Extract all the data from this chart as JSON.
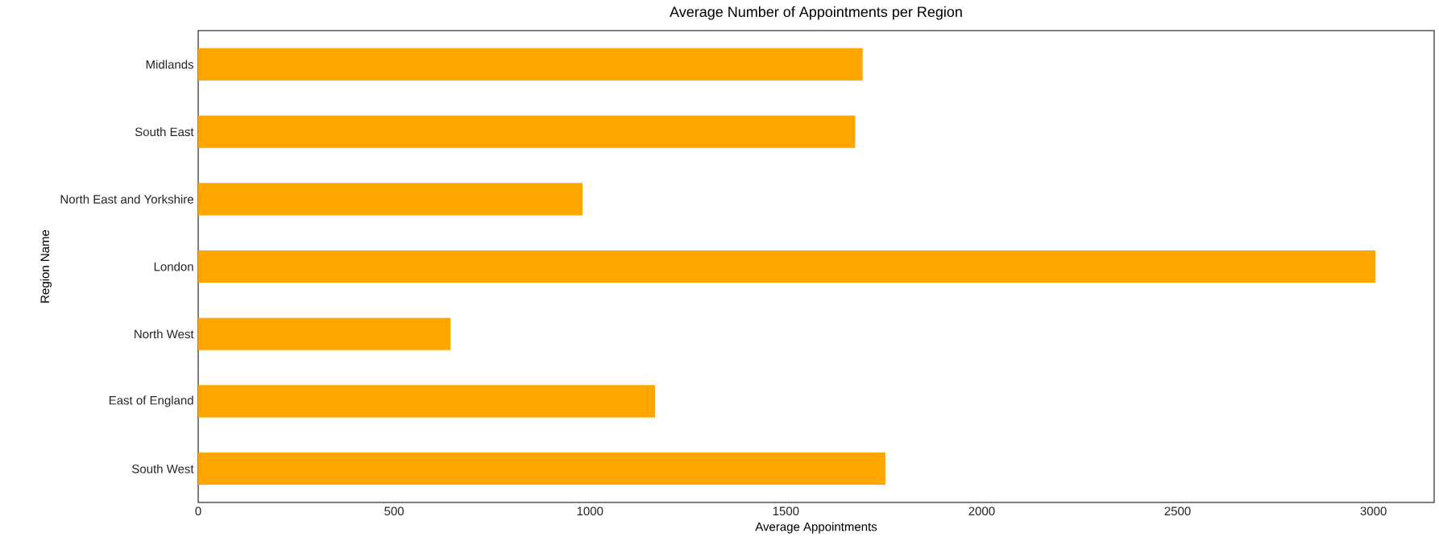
{
  "chart_data": {
    "type": "bar",
    "orientation": "horizontal",
    "title": "Average Number of Appointments per Region",
    "xlabel": "Average Appointments",
    "ylabel": "Region Name",
    "categories": [
      "Midlands",
      "South East",
      "North East and Yorkshire",
      "London",
      "North West",
      "East of England",
      "South West"
    ],
    "values": [
      1696,
      1677,
      981,
      3005,
      644,
      1166,
      1754
    ],
    "color": "#ffa500",
    "xlim": [
      0,
      3155
    ],
    "xticks": [
      0,
      500,
      1000,
      1500,
      2000,
      2500,
      3000
    ]
  }
}
